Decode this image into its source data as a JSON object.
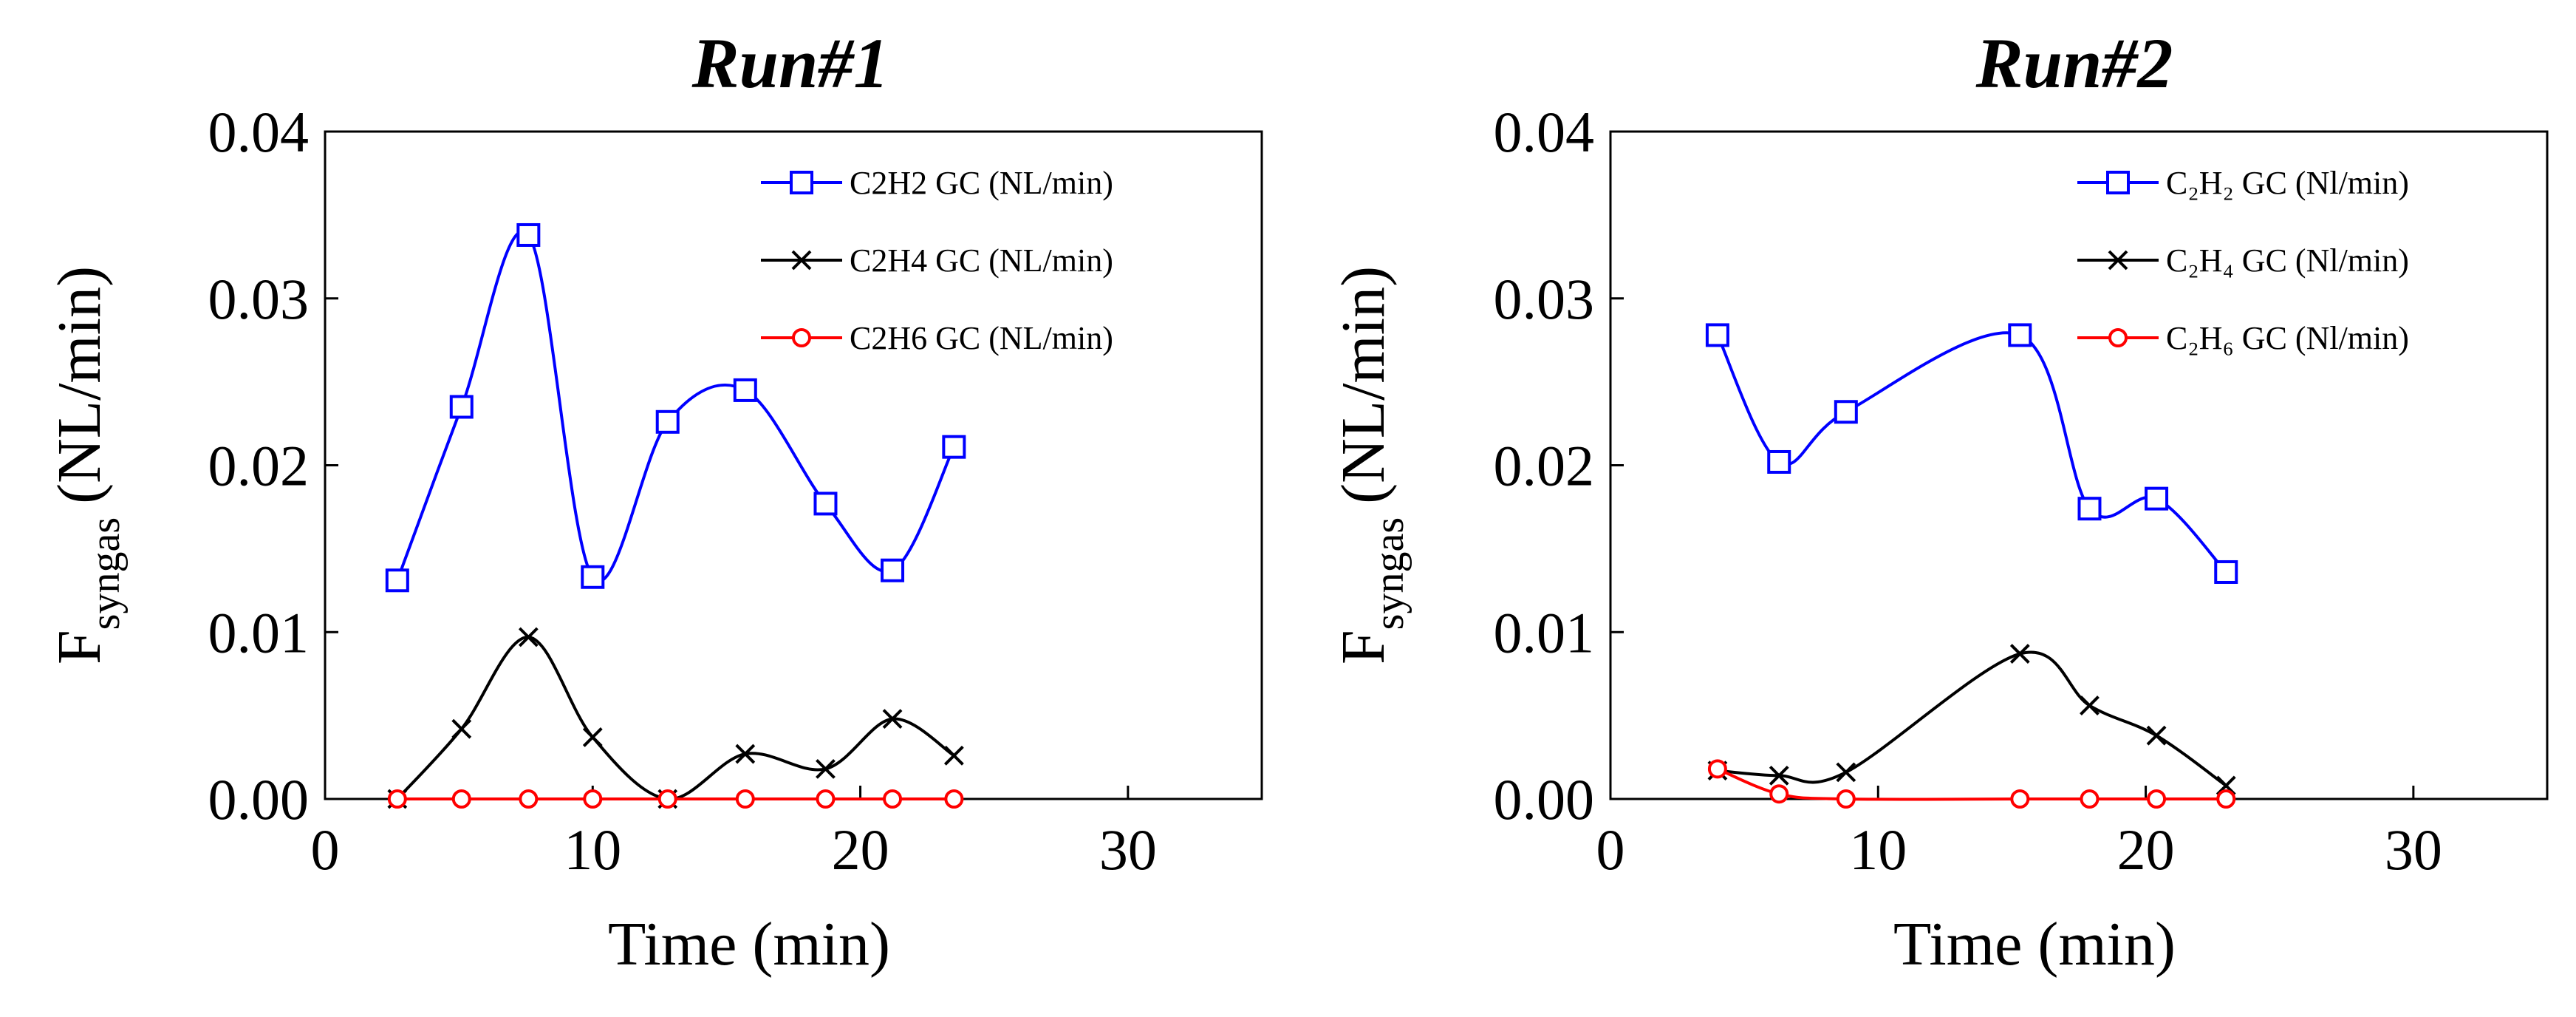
{
  "chart_data": [
    {
      "type": "line",
      "title": "Run#1",
      "xlabel": "Time (min)",
      "ylabel": {
        "main": "F",
        "sub": "syngas",
        "unit": "(NL/min)"
      },
      "xlim": [
        0,
        35
      ],
      "ylim": [
        0,
        0.04
      ],
      "x_ticks": [
        "0",
        "10",
        "20",
        "30"
      ],
      "y_ticks": [
        "0.00",
        "0.01",
        "0.02",
        "0.03",
        "0.04"
      ],
      "grid": false,
      "legend_position": "top-right",
      "series": [
        {
          "name": "C2H2 GC (NL/min)",
          "color": "#0000ff",
          "marker": "square",
          "x": [
            2.7,
            5.1,
            7.6,
            10.0,
            12.8,
            15.7,
            18.7,
            21.2,
            23.5
          ],
          "y": [
            0.0131,
            0.0235,
            0.0338,
            0.0133,
            0.0226,
            0.0245,
            0.0177,
            0.0137,
            0.0211
          ]
        },
        {
          "name": "C2H4 GC (NL/min)",
          "color": "#000000",
          "marker": "x",
          "x": [
            2.7,
            5.1,
            7.6,
            10.0,
            12.8,
            15.7,
            18.7,
            21.2,
            23.5
          ],
          "y": [
            0.0,
            0.0042,
            0.0097,
            0.0037,
            0.0,
            0.0027,
            0.0018,
            0.0048,
            0.0026
          ]
        },
        {
          "name": "C2H6 GC (NL/min)",
          "color": "#ff0000",
          "marker": "circle",
          "x": [
            2.7,
            5.1,
            7.6,
            10.0,
            12.8,
            15.7,
            18.7,
            21.2,
            23.5
          ],
          "y": [
            0,
            0,
            0,
            0,
            0,
            0,
            0,
            0,
            0
          ]
        }
      ]
    },
    {
      "type": "line",
      "title": "Run#2",
      "xlabel": "Time (min)",
      "ylabel": {
        "main": "F",
        "sub": "syngas",
        "unit": "(NL/min)"
      },
      "xlim": [
        0,
        35
      ],
      "ylim": [
        0,
        0.04
      ],
      "x_ticks": [
        "0",
        "10",
        "20",
        "30"
      ],
      "y_ticks": [
        "0.00",
        "0.01",
        "0.02",
        "0.03",
        "0.04"
      ],
      "grid": false,
      "legend_position": "top-right",
      "series": [
        {
          "name": "C₂H₂ GC (Nl/min)",
          "color": "#0000ff",
          "marker": "square",
          "x": [
            4.0,
            6.3,
            8.8,
            15.3,
            17.9,
            20.4,
            23.0
          ],
          "y": [
            0.0278,
            0.0202,
            0.0232,
            0.0278,
            0.0174,
            0.018,
            0.0136
          ]
        },
        {
          "name": "C₂H₄ GC (Nl/min)",
          "color": "#000000",
          "marker": "x",
          "x": [
            4.0,
            6.3,
            8.8,
            15.3,
            17.9,
            20.4,
            23.0
          ],
          "y": [
            0.0017,
            0.0014,
            0.0016,
            0.0087,
            0.0056,
            0.0038,
            0.0008
          ]
        },
        {
          "name": "C₂H₆ GC (Nl/min)",
          "color": "#ff0000",
          "marker": "circle",
          "x": [
            4.0,
            6.3,
            8.8,
            15.3,
            17.9,
            20.4,
            23.0
          ],
          "y": [
            0.0018,
            0.0003,
            0,
            0,
            0,
            0,
            0
          ]
        }
      ]
    }
  ]
}
